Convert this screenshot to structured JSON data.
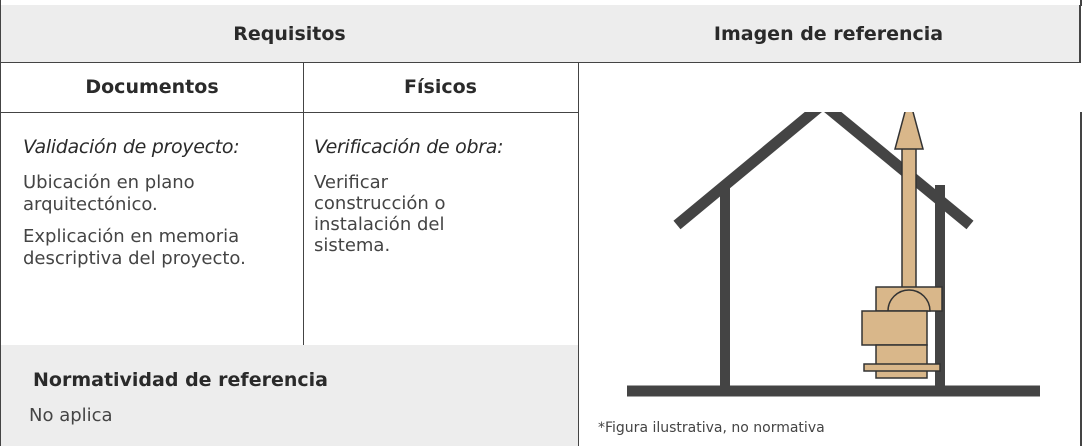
{
  "header": {
    "requisitos": "Requisitos",
    "imagen": "Imagen de referencia"
  },
  "subheader": {
    "documentos": "Documentos",
    "fisicos": "Físicos"
  },
  "documentos": {
    "heading": "Validación de proyecto:",
    "items": [
      "Ubicación en plano arquitectónico.",
      "Explicación en memoria descriptiva del proyecto."
    ]
  },
  "fisicos": {
    "heading": "Verificación de obra:",
    "items": [
      "Verificar construcción o instalación del sistema."
    ]
  },
  "normatividad": {
    "title": "Normatividad de referencia",
    "text": "No aplica"
  },
  "figure": {
    "caption": "*Figura ilustrativa, no normativa"
  }
}
